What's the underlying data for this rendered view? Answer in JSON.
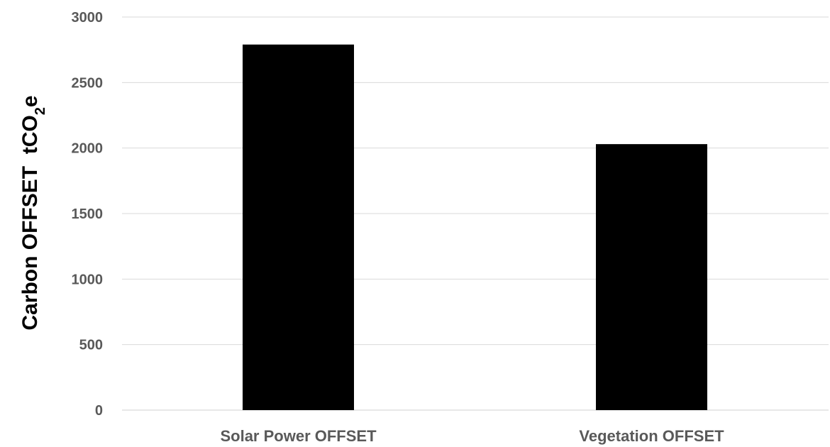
{
  "chart_data": {
    "type": "bar",
    "categories": [
      "Solar Power OFFSET",
      "Vegetation OFFSET"
    ],
    "values": [
      2790,
      2030
    ],
    "title": "",
    "xlabel": "",
    "ylabel": "Carbon OFFSET  tCO₂e",
    "ylim": [
      0,
      3000
    ],
    "yticks": [
      0,
      500,
      1000,
      1500,
      2000,
      2500,
      3000
    ],
    "grid": true,
    "legend": "none",
    "bar_color": "#000000",
    "gridline_color": "#d9d9d9",
    "tick_label_color": "#595959"
  }
}
